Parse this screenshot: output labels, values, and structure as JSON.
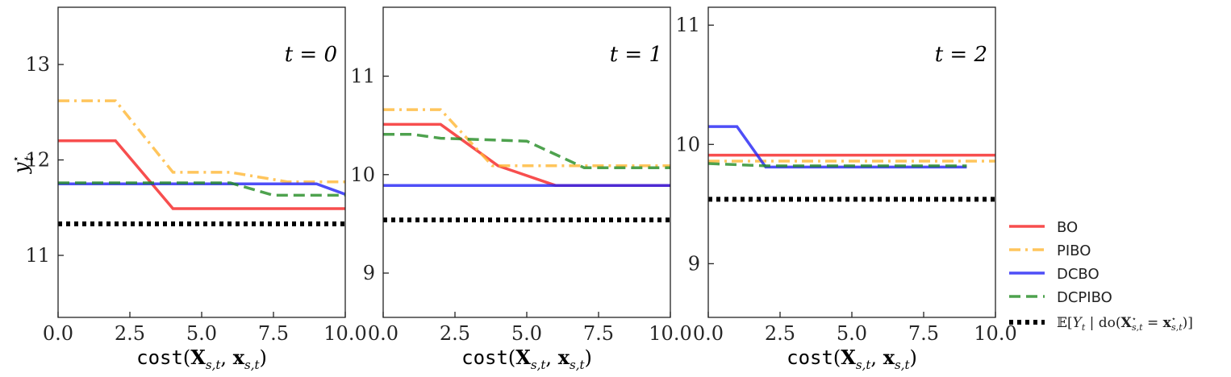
{
  "chart_data": [
    {
      "type": "line",
      "panel_label": "t = 0",
      "ylabel": "y_t^*",
      "xlabel": "cost(X_{s,t}, x_{s,t})",
      "xlim": [
        0,
        10
      ],
      "ylim": [
        10.35,
        13.6
      ],
      "xticks": [
        0.0,
        2.5,
        5.0,
        7.5,
        10.0
      ],
      "xtick_labels": [
        "0.0",
        "2.5",
        "5.0",
        "7.5",
        "10.0"
      ],
      "yticks": [
        11,
        12,
        13
      ],
      "ytick_labels": [
        "11",
        "12",
        "13"
      ],
      "series": [
        {
          "name": "BO",
          "x": [
            0,
            2,
            4,
            10
          ],
          "y": [
            12.2,
            12.2,
            11.49,
            11.49
          ]
        },
        {
          "name": "PIBO",
          "x": [
            0,
            2,
            4,
            6,
            8,
            10
          ],
          "y": [
            12.62,
            12.62,
            11.87,
            11.87,
            11.77,
            11.77
          ]
        },
        {
          "name": "DCBO",
          "x": [
            0,
            9,
            10
          ],
          "y": [
            11.75,
            11.75,
            11.64
          ]
        },
        {
          "name": "DCPIBO",
          "x": [
            0,
            6,
            7.5,
            10
          ],
          "y": [
            11.76,
            11.76,
            11.63,
            11.63
          ]
        },
        {
          "name": "E[Y_t | do(X*_{s,t} = x*_{s,t})]",
          "x": [
            0,
            10
          ],
          "y": [
            11.33,
            11.33
          ]
        }
      ]
    },
    {
      "type": "line",
      "panel_label": "t = 1",
      "ylabel": "",
      "xlabel": "cost(X_{s,t}, x_{s,t})",
      "xlim": [
        0,
        10
      ],
      "ylim": [
        8.55,
        11.7
      ],
      "xticks": [
        0.0,
        2.5,
        5.0,
        7.5,
        10.0
      ],
      "xtick_labels": [
        "0.0",
        "2.5",
        "5.0",
        "7.5",
        "10.0"
      ],
      "yticks": [
        9,
        10,
        11
      ],
      "ytick_labels": [
        "9",
        "10",
        "11"
      ],
      "series": [
        {
          "name": "BO",
          "x": [
            0,
            2,
            4,
            6,
            10
          ],
          "y": [
            10.51,
            10.51,
            10.09,
            9.89,
            9.89
          ]
        },
        {
          "name": "PIBO",
          "x": [
            0,
            2,
            3.8,
            10
          ],
          "y": [
            10.66,
            10.66,
            10.09,
            10.09
          ]
        },
        {
          "name": "DCBO",
          "x": [
            0,
            10
          ],
          "y": [
            9.89,
            9.89
          ]
        },
        {
          "name": "DCPIBO",
          "x": [
            0,
            1,
            2,
            5,
            7,
            10
          ],
          "y": [
            10.41,
            10.41,
            10.37,
            10.34,
            10.07,
            10.07
          ]
        },
        {
          "name": "E[Y_t | do(X*_{s,t} = x*_{s,t})]",
          "x": [
            0,
            10
          ],
          "y": [
            9.54,
            9.54
          ]
        }
      ]
    },
    {
      "type": "line",
      "panel_label": "t = 2",
      "ylabel": "",
      "xlabel": "cost(X_{s,t}, x_{s,t})",
      "xlim": [
        0,
        10
      ],
      "ylim": [
        8.55,
        11.15
      ],
      "xticks": [
        0.0,
        2.5,
        5.0,
        7.5,
        10.0
      ],
      "xtick_labels": [
        "0.0",
        "2.5",
        "5.0",
        "7.5",
        "10.0"
      ],
      "yticks": [
        9,
        10,
        11
      ],
      "ytick_labels": [
        "9",
        "10",
        "11"
      ],
      "series": [
        {
          "name": "BO",
          "x": [
            0,
            10
          ],
          "y": [
            9.91,
            9.91
          ]
        },
        {
          "name": "PIBO",
          "x": [
            0,
            10
          ],
          "y": [
            9.86,
            9.86
          ]
        },
        {
          "name": "DCBO",
          "x": [
            0,
            1,
            2,
            9
          ],
          "y": [
            10.15,
            10.15,
            9.81,
            9.81
          ]
        },
        {
          "name": "DCPIBO",
          "x": [
            0,
            2,
            9
          ],
          "y": [
            9.84,
            9.82,
            9.82
          ]
        },
        {
          "name": "E[Y_t | do(X*_{s,t} = x*_{s,t})]",
          "x": [
            0,
            10
          ],
          "y": [
            9.54,
            9.54
          ]
        }
      ]
    }
  ],
  "legend": {
    "placement": "bottom-right outside",
    "items": [
      {
        "label": "BO",
        "color": "#f52222",
        "style": "solid"
      },
      {
        "label": "PIBO",
        "color": "#ffb733",
        "style": "dashdot"
      },
      {
        "label": "DCBO",
        "color": "#2222f5",
        "style": "solid"
      },
      {
        "label": "DCPIBO",
        "color": "#228b22",
        "style": "dashed"
      },
      {
        "label": "𝔼[Y_t | do(X*_{s,t} = x*_{s,t})]",
        "color": "#000000",
        "style": "dotted"
      }
    ]
  },
  "grid": false
}
